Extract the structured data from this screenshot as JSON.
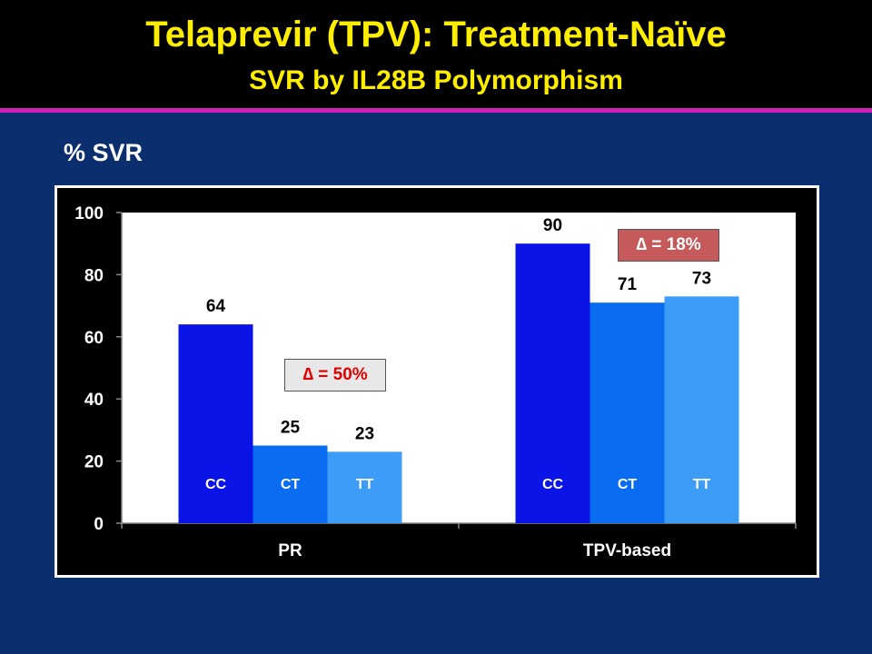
{
  "title": "Telaprevir (TPV): Treatment-Naïve",
  "subtitle": "SVR by IL28B Polymorphism",
  "y_axis_caption": "% SVR",
  "annotations": {
    "pr_delta": "∆ = 50%",
    "tpv_delta": "∆ = 18%"
  },
  "colors": {
    "background": "#0b2e6e",
    "header": "#000000",
    "header_rule": "#d11fb8",
    "title": "#ffee00",
    "CC": "#0a14e6",
    "CT": "#0a6cf0",
    "TT": "#3d9cf5"
  },
  "chart_data": {
    "type": "bar",
    "categories": [
      "PR",
      "TPV-based"
    ],
    "series": [
      {
        "name": "CC",
        "values": [
          64,
          90
        ]
      },
      {
        "name": "CT",
        "values": [
          25,
          71
        ]
      },
      {
        "name": "TT",
        "values": [
          23,
          73
        ]
      }
    ],
    "ylim": [
      0,
      100
    ],
    "yticks": [
      0,
      20,
      40,
      60,
      80,
      100
    ],
    "ylabel": "% SVR",
    "xlabel": "",
    "grid": false,
    "data_labels": true
  }
}
